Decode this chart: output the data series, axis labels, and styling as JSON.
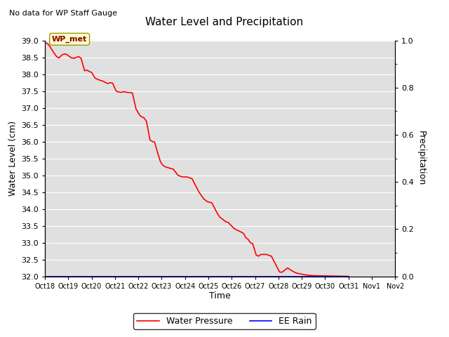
{
  "title": "Water Level and Precipitation",
  "subtitle": "No data for WP Staff Gauge",
  "ylabel_left": "Water Level (cm)",
  "ylabel_right": "Precipitation",
  "xlabel": "Time",
  "ylim_left": [
    32.0,
    39.0
  ],
  "ylim_right": [
    0.0,
    1.0
  ],
  "legend_label_1": "Water Pressure",
  "legend_label_2": "EE Rain",
  "legend_color_1": "red",
  "legend_color_2": "blue",
  "annotation_label": "WP_met",
  "background_color": "#e0e0e0",
  "water_level_data": [
    [
      0,
      38.93
    ],
    [
      0.05,
      38.93
    ],
    [
      0.15,
      38.88
    ],
    [
      0.25,
      38.78
    ],
    [
      0.4,
      38.62
    ],
    [
      0.5,
      38.52
    ],
    [
      0.6,
      38.48
    ],
    [
      0.75,
      38.58
    ],
    [
      0.85,
      38.6
    ],
    [
      0.95,
      38.58
    ],
    [
      1.05,
      38.52
    ],
    [
      1.15,
      38.48
    ],
    [
      1.25,
      38.47
    ],
    [
      1.35,
      38.5
    ],
    [
      1.45,
      38.52
    ],
    [
      1.55,
      38.47
    ],
    [
      1.7,
      38.1
    ],
    [
      1.8,
      38.12
    ],
    [
      1.9,
      38.08
    ],
    [
      2.0,
      38.05
    ],
    [
      2.15,
      37.88
    ],
    [
      2.25,
      37.85
    ],
    [
      2.35,
      37.82
    ],
    [
      2.45,
      37.8
    ],
    [
      2.6,
      37.75
    ],
    [
      2.7,
      37.72
    ],
    [
      2.8,
      37.75
    ],
    [
      2.9,
      37.73
    ],
    [
      3.05,
      37.5
    ],
    [
      3.15,
      37.47
    ],
    [
      3.25,
      37.46
    ],
    [
      3.4,
      37.48
    ],
    [
      3.5,
      37.46
    ],
    [
      3.7,
      37.45
    ],
    [
      3.75,
      37.44
    ],
    [
      3.9,
      36.97
    ],
    [
      4.0,
      36.85
    ],
    [
      4.1,
      36.75
    ],
    [
      4.25,
      36.7
    ],
    [
      4.35,
      36.6
    ],
    [
      4.5,
      36.05
    ],
    [
      4.6,
      36.0
    ],
    [
      4.7,
      35.98
    ],
    [
      4.85,
      35.62
    ],
    [
      4.95,
      35.4
    ],
    [
      5.05,
      35.3
    ],
    [
      5.15,
      35.25
    ],
    [
      5.3,
      35.22
    ],
    [
      5.4,
      35.2
    ],
    [
      5.5,
      35.18
    ],
    [
      5.7,
      35.0
    ],
    [
      5.8,
      34.97
    ],
    [
      5.9,
      34.95
    ],
    [
      6.1,
      34.95
    ],
    [
      6.2,
      34.92
    ],
    [
      6.3,
      34.9
    ],
    [
      6.6,
      34.5
    ],
    [
      6.7,
      34.4
    ],
    [
      6.8,
      34.3
    ],
    [
      6.95,
      34.22
    ],
    [
      7.05,
      34.2
    ],
    [
      7.15,
      34.18
    ],
    [
      7.4,
      33.85
    ],
    [
      7.5,
      33.75
    ],
    [
      7.6,
      33.7
    ],
    [
      7.75,
      33.62
    ],
    [
      7.85,
      33.6
    ],
    [
      8.1,
      33.42
    ],
    [
      8.2,
      33.38
    ],
    [
      8.3,
      33.35
    ],
    [
      8.5,
      33.28
    ],
    [
      8.55,
      33.22
    ],
    [
      8.6,
      33.15
    ],
    [
      8.7,
      33.1
    ],
    [
      8.8,
      33.0
    ],
    [
      8.9,
      32.97
    ],
    [
      9.05,
      32.63
    ],
    [
      9.15,
      32.6
    ],
    [
      9.25,
      32.65
    ],
    [
      9.35,
      32.65
    ],
    [
      9.5,
      32.65
    ],
    [
      9.6,
      32.62
    ],
    [
      9.7,
      32.6
    ],
    [
      10.05,
      32.13
    ],
    [
      10.15,
      32.12
    ],
    [
      10.4,
      32.25
    ],
    [
      10.5,
      32.2
    ],
    [
      10.75,
      32.1
    ],
    [
      10.9,
      32.08
    ],
    [
      11.1,
      32.05
    ],
    [
      11.3,
      32.03
    ],
    [
      11.5,
      32.02
    ],
    [
      13.0,
      32.0
    ]
  ],
  "rain_data": [
    [
      0,
      0.0
    ],
    [
      13.0,
      0.0
    ]
  ],
  "xtick_labels": [
    "Oct 18",
    "Oct 19",
    "Oct 20",
    "Oct 21",
    "Oct 22",
    "Oct 23",
    "Oct 24",
    "Oct 25",
    "Oct 26",
    "Oct 27",
    "Oct 28",
    "Oct 29",
    "Oct 30",
    "Oct 31",
    "Nov 1",
    "Nov 2"
  ],
  "xtick_positions": [
    0,
    1,
    2,
    3,
    4,
    5,
    6,
    7,
    8,
    9,
    10,
    11,
    12,
    13,
    14,
    15
  ],
  "xlim": [
    0,
    15
  ],
  "yticks_left": [
    32.0,
    32.5,
    33.0,
    33.5,
    34.0,
    34.5,
    35.0,
    35.5,
    36.0,
    36.5,
    37.0,
    37.5,
    38.0,
    38.5,
    39.0
  ],
  "yticks_right": [
    0.0,
    0.2,
    0.4,
    0.6,
    0.8,
    1.0
  ],
  "yticks_right_minor": [
    0.1,
    0.3,
    0.5,
    0.7,
    0.9
  ]
}
